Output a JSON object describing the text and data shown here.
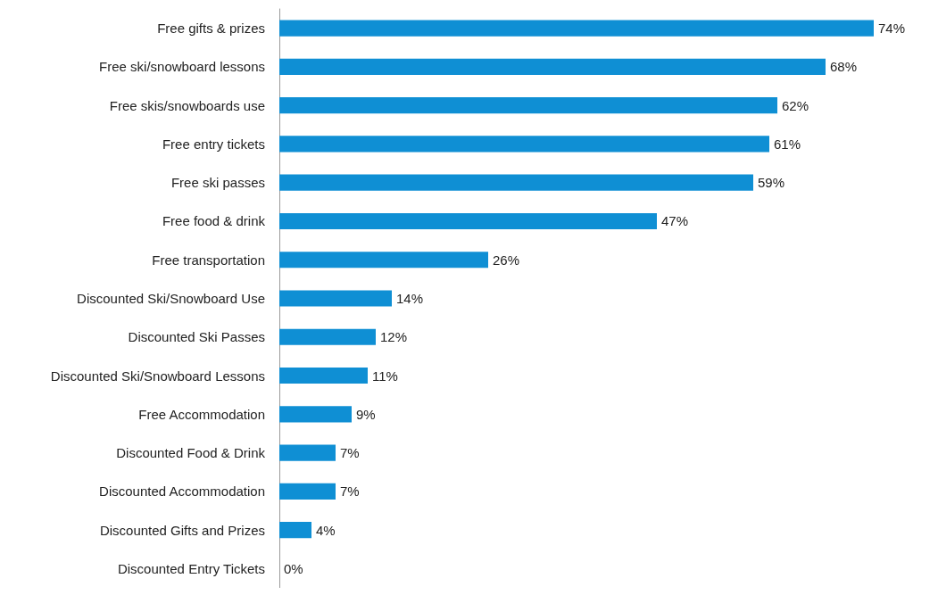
{
  "chart_data": {
    "type": "bar",
    "orientation": "horizontal",
    "categories": [
      "Free gifts & prizes",
      "Free ski/snowboard lessons",
      "Free skis/snowboards use",
      "Free entry tickets",
      "Free ski passes",
      "Free food & drink",
      "Free transportation",
      "Discounted Ski/Snowboard Use",
      "Discounted Ski Passes",
      "Discounted Ski/Snowboard Lessons",
      "Free Accommodation",
      "Discounted Food & Drink",
      "Discounted Accommodation",
      "Discounted Gifts and Prizes",
      "Discounted Entry Tickets"
    ],
    "values": [
      74,
      68,
      62,
      61,
      59,
      47,
      26,
      14,
      12,
      11,
      9,
      7,
      7,
      4,
      0
    ],
    "value_labels": [
      "74%",
      "68%",
      "62%",
      "61%",
      "59%",
      "47%",
      "26%",
      "14%",
      "12%",
      "11%",
      "9%",
      "7%",
      "7%",
      "4%",
      "0%"
    ],
    "color": "#0f8fd4",
    "grid": false
  }
}
